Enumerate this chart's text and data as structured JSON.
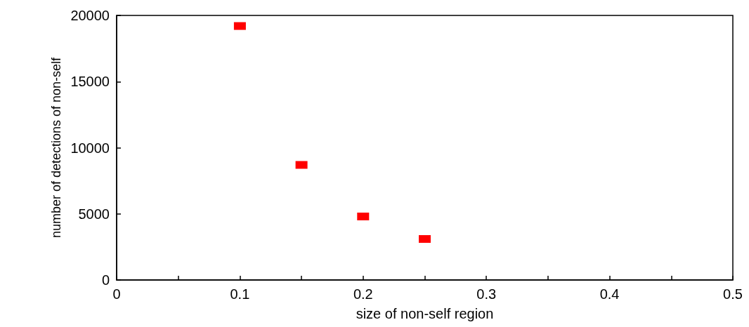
{
  "chart_data": {
    "type": "scatter",
    "xlabel": "size of non-self region",
    "ylabel": "number of detections of non-self",
    "x": [
      0.1,
      0.15,
      0.2,
      0.25
    ],
    "series": [
      {
        "color": "#ff0000",
        "values": [
          19200,
          8700,
          4800,
          3100
        ]
      }
    ],
    "xlim": [
      0,
      0.5
    ],
    "xticks": [
      0,
      {
        "value": 0.05,
        "label": null
      },
      0.1,
      {
        "value": 0.15,
        "label": null
      },
      0.2,
      {
        "value": 0.25,
        "label": null
      },
      0.3,
      {
        "value": 0.35,
        "label": null
      },
      0.4,
      {
        "value": 0.45,
        "label": null
      },
      0.5
    ],
    "ylim": [
      0,
      20000
    ],
    "yticks": [
      0,
      5000,
      10000,
      15000,
      20000
    ],
    "grid": false,
    "marker": "square"
  }
}
